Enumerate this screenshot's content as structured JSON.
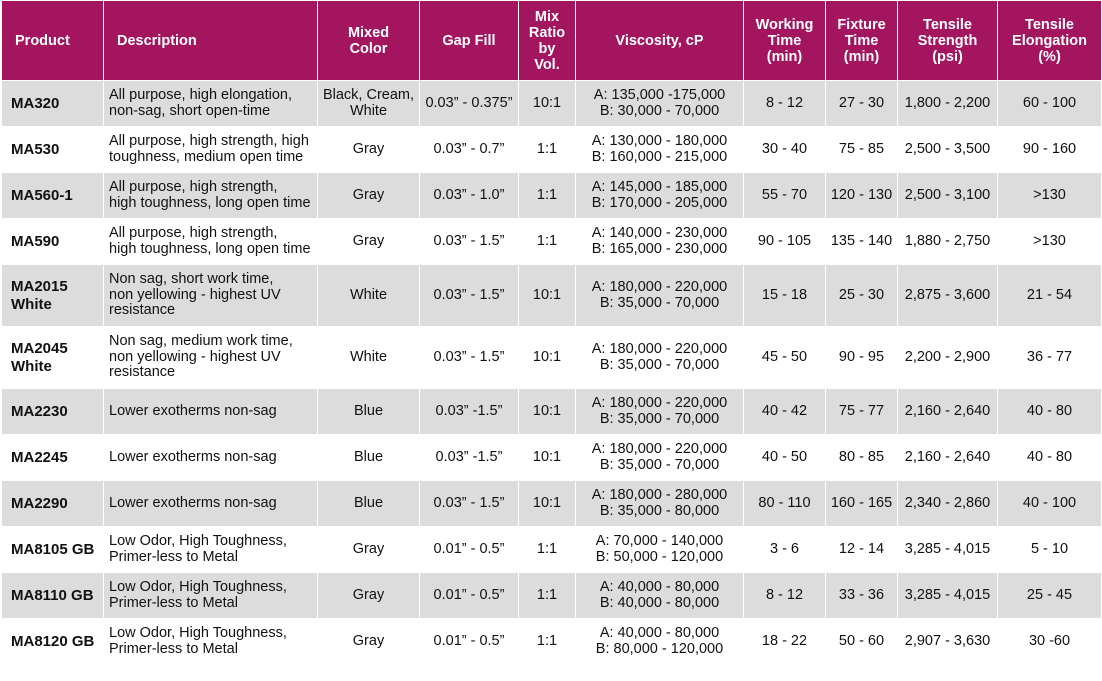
{
  "headers": {
    "product": "Product",
    "description": "Description",
    "mixed_color": [
      "Mixed",
      "Color"
    ],
    "gap_fill": "Gap Fill",
    "mix_ratio": [
      "Mix",
      "Ratio",
      "by",
      "Vol."
    ],
    "viscosity": "Viscosity, cP",
    "working_time": [
      "Working",
      "Time",
      "(min)"
    ],
    "fixture_time": [
      "Fixture",
      "Time",
      "(min)"
    ],
    "tensile_strength": [
      "Tensile",
      "Strength",
      "(psi)"
    ],
    "tensile_elongation": [
      "Tensile",
      "Elongation",
      "(%)"
    ]
  },
  "rows": [
    {
      "product": "MA320",
      "description": [
        "All purpose, high elongation,",
        "non-sag, short open-time"
      ],
      "color": [
        "Black, Cream,",
        "White"
      ],
      "gap_fill": "0.03” - 0.375”",
      "mix_ratio": "10:1",
      "viscosity": [
        "A: 135,000 -175,000",
        "B: 30,000 - 70,000"
      ],
      "working_time": "8 - 12",
      "fixture_time": "27 - 30",
      "tensile_strength": "1,800 - 2,200",
      "tensile_elongation": "60 - 100"
    },
    {
      "product": "MA530",
      "description": [
        "All purpose, high strength, high",
        "toughness, medium open time"
      ],
      "color": [
        "Gray"
      ],
      "gap_fill": "0.03” - 0.7”",
      "mix_ratio": "1:1",
      "viscosity": [
        "A: 130,000 - 180,000",
        "B: 160,000 - 215,000"
      ],
      "working_time": "30 - 40",
      "fixture_time": "75 - 85",
      "tensile_strength": "2,500 - 3,500",
      "tensile_elongation": "90 - 160"
    },
    {
      "product": "MA560-1",
      "description": [
        "All purpose, high strength,",
        "high toughness, long open time"
      ],
      "color": [
        "Gray"
      ],
      "gap_fill": "0.03” - 1.0”",
      "mix_ratio": "1:1",
      "viscosity": [
        "A: 145,000 - 185,000",
        "B: 170,000 - 205,000"
      ],
      "working_time": "55 - 70",
      "fixture_time": "120 - 130",
      "tensile_strength": "2,500 - 3,100",
      "tensile_elongation": ">130"
    },
    {
      "product": "MA590",
      "description": [
        "All purpose, high strength,",
        "high toughness, long open time"
      ],
      "color": [
        "Gray"
      ],
      "gap_fill": "0.03” - 1.5”",
      "mix_ratio": "1:1",
      "viscosity": [
        "A: 140,000 - 230,000",
        "B: 165,000 - 230,000"
      ],
      "working_time": "90 - 105",
      "fixture_time": "135 - 140",
      "tensile_strength": "1,880 - 2,750",
      "tensile_elongation": ">130"
    },
    {
      "product": "MA2015 White",
      "description": [
        "Non sag, short work time,",
        "non yellowing - highest UV",
        "resistance"
      ],
      "color": [
        "White"
      ],
      "gap_fill": "0.03” - 1.5”",
      "mix_ratio": "10:1",
      "viscosity": [
        "A: 180,000 - 220,000",
        "B: 35,000 - 70,000"
      ],
      "working_time": "15 - 18",
      "fixture_time": "25 - 30",
      "tensile_strength": "2,875 - 3,600",
      "tensile_elongation": "21 - 54"
    },
    {
      "product": "MA2045 White",
      "description": [
        "Non sag, medium work time,",
        "non yellowing - highest UV",
        "resistance"
      ],
      "color": [
        "White"
      ],
      "gap_fill": "0.03” - 1.5”",
      "mix_ratio": "10:1",
      "viscosity": [
        "A: 180,000 - 220,000",
        "B: 35,000 - 70,000"
      ],
      "working_time": "45 - 50",
      "fixture_time": "90 - 95",
      "tensile_strength": "2,200 - 2,900",
      "tensile_elongation": "36 - 77"
    },
    {
      "product": "MA2230",
      "description": [
        "Lower exotherms non-sag"
      ],
      "color": [
        "Blue"
      ],
      "gap_fill": "0.03” -1.5”",
      "mix_ratio": "10:1",
      "viscosity": [
        "A: 180,000 - 220,000",
        "B: 35,000 - 70,000"
      ],
      "working_time": "40 - 42",
      "fixture_time": "75 - 77",
      "tensile_strength": "2,160 - 2,640",
      "tensile_elongation": "40 - 80"
    },
    {
      "product": "MA2245",
      "description": [
        "Lower exotherms non-sag"
      ],
      "color": [
        "Blue"
      ],
      "gap_fill": "0.03” -1.5”",
      "mix_ratio": "10:1",
      "viscosity": [
        "A: 180,000 - 220,000",
        "B: 35,000 - 70,000"
      ],
      "working_time": "40 - 50",
      "fixture_time": "80 - 85",
      "tensile_strength": "2,160 - 2,640",
      "tensile_elongation": "40 - 80"
    },
    {
      "product": "MA2290",
      "description": [
        "Lower exotherms non-sag"
      ],
      "color": [
        "Blue"
      ],
      "gap_fill": "0.03” - 1.5”",
      "mix_ratio": "10:1",
      "viscosity": [
        "A: 180,000 - 280,000",
        "B: 35,000 - 80,000"
      ],
      "working_time": "80 - 110",
      "fixture_time": "160 - 165",
      "tensile_strength": "2,340 - 2,860",
      "tensile_elongation": "40 - 100"
    },
    {
      "product": "MA8105 GB",
      "description": [
        "Low Odor, High Toughness,",
        "Primer-less to Metal"
      ],
      "color": [
        "Gray"
      ],
      "gap_fill": "0.01” - 0.5”",
      "mix_ratio": "1:1",
      "viscosity": [
        "A: 70,000 - 140,000",
        "B: 50,000 - 120,000"
      ],
      "working_time": "3 - 6",
      "fixture_time": "12 - 14",
      "tensile_strength": "3,285 - 4,015",
      "tensile_elongation": "5 - 10"
    },
    {
      "product": "MA8110 GB",
      "description": [
        "Low Odor, High Toughness,",
        "Primer-less to Metal"
      ],
      "color": [
        "Gray"
      ],
      "gap_fill": "0.01” - 0.5”",
      "mix_ratio": "1:1",
      "viscosity": [
        "A: 40,000 - 80,000",
        "B: 40,000 - 80,000"
      ],
      "working_time": "8 - 12",
      "fixture_time": "33 - 36",
      "tensile_strength": "3,285 - 4,015",
      "tensile_elongation": "25 - 45"
    },
    {
      "product": "MA8120 GB",
      "description": [
        "Low Odor, High Toughness,",
        "Primer-less to Metal"
      ],
      "color": [
        "Gray"
      ],
      "gap_fill": "0.01” - 0.5”",
      "mix_ratio": "1:1",
      "viscosity": [
        "A: 40,000 - 80,000",
        "B: 80,000 - 120,000"
      ],
      "working_time": "18 - 22",
      "fixture_time": "50 - 60",
      "tensile_strength": "2,907 - 3,630",
      "tensile_elongation": "30 -60"
    }
  ],
  "colors": {
    "header_bg": "#a3165f",
    "header_text": "#ffffff",
    "stripe_bg": "#dcdcdc"
  }
}
